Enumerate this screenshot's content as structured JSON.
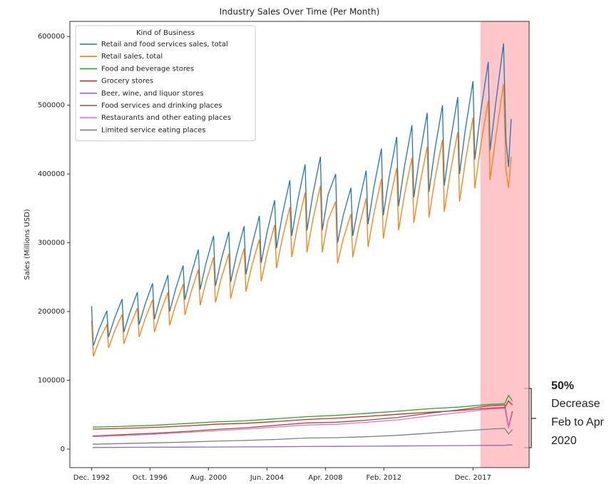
{
  "chart_data": {
    "type": "line",
    "title": "Industry Sales Over Time (Per Month)",
    "y_label": "Sales (Millions USD)",
    "legend_title": "Kind of Business",
    "legend": "upper left",
    "xlim": [
      1991.5,
      2021.6
    ],
    "ylim": [
      -27000,
      622000
    ],
    "xticks": [
      {
        "value": 1992.92,
        "label": "Dec. 1992"
      },
      {
        "value": 1996.75,
        "label": "Oct. 1996"
      },
      {
        "value": 2000.58,
        "label": "Aug. 2000"
      },
      {
        "value": 2004.42,
        "label": "Jun. 2004"
      },
      {
        "value": 2008.25,
        "label": "Apr. 2008"
      },
      {
        "value": 2012.08,
        "label": "Feb. 2012"
      },
      {
        "value": 2017.92,
        "label": "Dec. 2017"
      }
    ],
    "yticks": [
      0,
      100000,
      200000,
      300000,
      400000,
      500000,
      600000
    ],
    "highlight_x": [
      2018.4,
      2021.6
    ],
    "highlight_color": "#ffb3b8",
    "annotation": [
      "50%",
      "Decrease",
      "Feb to Apr",
      "2020"
    ],
    "series": [
      {
        "name": "Retail and food services sales, total",
        "color": "#1f77b4",
        "x": [
          1992.92,
          1993.04,
          1993.42,
          1993.92,
          1994.04,
          1994.42,
          1994.92,
          1995.04,
          1995.42,
          1995.92,
          1996.04,
          1996.42,
          1996.92,
          1997.04,
          1997.42,
          1997.92,
          1998.04,
          1998.42,
          1998.92,
          1999.04,
          1999.42,
          1999.92,
          2000.04,
          2000.42,
          2000.92,
          2001.04,
          2001.42,
          2001.92,
          2002.04,
          2002.42,
          2002.92,
          2003.04,
          2003.42,
          2003.92,
          2004.04,
          2004.42,
          2004.92,
          2005.04,
          2005.42,
          2005.92,
          2006.04,
          2006.42,
          2006.92,
          2007.04,
          2007.42,
          2007.92,
          2008.04,
          2008.42,
          2008.92,
          2009.04,
          2009.42,
          2009.92,
          2010.04,
          2010.42,
          2010.92,
          2011.04,
          2011.42,
          2011.92,
          2012.04,
          2012.42,
          2012.92,
          2013.04,
          2013.42,
          2013.92,
          2014.04,
          2014.42,
          2014.92,
          2015.04,
          2015.42,
          2015.92,
          2016.04,
          2016.42,
          2016.92,
          2017.04,
          2017.42,
          2017.92,
          2018.04,
          2018.42,
          2018.92,
          2019.04,
          2019.42,
          2019.92,
          2020.08,
          2020.25,
          2020.42
        ],
        "values": [
          208000,
          150000,
          175000,
          201000,
          163000,
          190000,
          218000,
          170000,
          198000,
          228000,
          181000,
          210000,
          241000,
          189000,
          220000,
          253000,
          200000,
          232000,
          267000,
          217000,
          252000,
          290000,
          232000,
          270000,
          310000,
          237000,
          275000,
          316000,
          243000,
          282000,
          324000,
          254000,
          295000,
          339000,
          271000,
          315000,
          362000,
          292000,
          340000,
          391000,
          310000,
          360000,
          414000,
          318000,
          370000,
          425000,
          318000,
          370000,
          400000,
          300000,
          340000,
          380000,
          310000,
          355000,
          405000,
          327000,
          380000,
          437000,
          340000,
          395000,
          454000,
          353000,
          410000,
          471000,
          366000,
          425000,
          489000,
          374000,
          435000,
          500000,
          383000,
          445000,
          512000,
          400000,
          465000,
          535000,
          421000,
          490000,
          563000,
          434000,
          505000,
          590000,
          450000,
          410000,
          480000
        ]
      },
      {
        "name": "Retail sales, total",
        "color": "#ff7f0e",
        "x": [
          1992.92,
          1993.04,
          1993.42,
          1993.92,
          1994.04,
          1994.42,
          1994.92,
          1995.04,
          1995.42,
          1995.92,
          1996.04,
          1996.42,
          1996.92,
          1997.04,
          1997.42,
          1997.92,
          1998.04,
          1998.42,
          1998.92,
          1999.04,
          1999.42,
          1999.92,
          2000.04,
          2000.42,
          2000.92,
          2001.04,
          2001.42,
          2001.92,
          2002.04,
          2002.42,
          2002.92,
          2003.04,
          2003.42,
          2003.92,
          2004.04,
          2004.42,
          2004.92,
          2005.04,
          2005.42,
          2005.92,
          2006.04,
          2006.42,
          2006.92,
          2007.04,
          2007.42,
          2007.92,
          2008.04,
          2008.42,
          2008.92,
          2009.04,
          2009.42,
          2009.92,
          2010.04,
          2010.42,
          2010.92,
          2011.04,
          2011.42,
          2011.92,
          2012.04,
          2012.42,
          2012.92,
          2013.04,
          2013.42,
          2013.92,
          2014.04,
          2014.42,
          2014.92,
          2015.04,
          2015.42,
          2015.92,
          2016.04,
          2016.42,
          2016.92,
          2017.04,
          2017.42,
          2017.92,
          2018.04,
          2018.42,
          2018.92,
          2019.04,
          2019.42,
          2019.92,
          2020.08,
          2020.25,
          2020.42
        ],
        "values": [
          187000,
          135000,
          158000,
          181000,
          147000,
          171000,
          196000,
          153000,
          178000,
          205000,
          163000,
          189000,
          217000,
          170000,
          198000,
          228000,
          180000,
          209000,
          240000,
          195000,
          227000,
          261000,
          209000,
          243000,
          279000,
          213000,
          248000,
          284000,
          219000,
          254000,
          292000,
          229000,
          266000,
          305000,
          244000,
          284000,
          326000,
          263000,
          306000,
          352000,
          279000,
          324000,
          373000,
          286000,
          333000,
          383000,
          286000,
          333000,
          360000,
          270000,
          306000,
          342000,
          279000,
          320000,
          365000,
          294000,
          342000,
          393000,
          306000,
          356000,
          409000,
          318000,
          369000,
          424000,
          329000,
          383000,
          440000,
          337000,
          392000,
          450000,
          345000,
          401000,
          461000,
          360000,
          419000,
          482000,
          379000,
          441000,
          507000,
          391000,
          455000,
          531000,
          405000,
          380000,
          425000
        ]
      },
      {
        "name": "Food and beverage stores",
        "color": "#2ca02c",
        "x": [
          1993,
          1995,
          1997,
          1999,
          2001,
          2003,
          2005,
          2007,
          2009,
          2011,
          2013,
          2015,
          2017,
          2019,
          2020.0,
          2020.25,
          2020.5
        ],
        "values": [
          32000,
          33000,
          34500,
          37000,
          39500,
          41000,
          44000,
          47000,
          49000,
          52000,
          55000,
          58500,
          61000,
          65000,
          66000,
          78000,
          70000
        ]
      },
      {
        "name": "Grocery stores",
        "color": "#d62728",
        "x": [
          1993,
          1995,
          1997,
          1999,
          2001,
          2003,
          2005,
          2007,
          2009,
          2011,
          2013,
          2015,
          2017,
          2019,
          2020.0,
          2020.25,
          2020.5
        ],
        "values": [
          29000,
          30000,
          31500,
          33500,
          36000,
          37500,
          40000,
          43000,
          45000,
          47500,
          50500,
          53500,
          56000,
          59500,
          60500,
          70000,
          64000
        ]
      },
      {
        "name": "Beer, wine, and liquor stores",
        "color": "#9467bd",
        "x": [
          1993,
          1995,
          1997,
          1999,
          2001,
          2003,
          2005,
          2007,
          2009,
          2011,
          2013,
          2015,
          2017,
          2019,
          2020.0,
          2020.25,
          2020.5
        ],
        "values": [
          2200,
          2400,
          2600,
          2800,
          3000,
          3200,
          3400,
          3700,
          3900,
          4100,
          4400,
          4700,
          5000,
          5300,
          5300,
          6000,
          5800
        ]
      },
      {
        "name": "Food services and drinking places",
        "color": "#8c564b",
        "x": [
          1993,
          1995,
          1997,
          1999,
          2001,
          2003,
          2005,
          2007,
          2009,
          2011,
          2013,
          2015,
          2017,
          2019,
          2020.0,
          2020.25,
          2020.5
        ],
        "values": [
          19000,
          21000,
          23000,
          25500,
          28500,
          31000,
          34500,
          38000,
          39000,
          42000,
          46000,
          52000,
          57000,
          63000,
          64000,
          32000,
          55000
        ]
      },
      {
        "name": "Restaurants and other eating places",
        "color": "#e377c2",
        "x": [
          1993,
          1995,
          1997,
          1999,
          2001,
          2003,
          2005,
          2007,
          2009,
          2011,
          2013,
          2015,
          2017,
          2019,
          2020.0,
          2020.25,
          2020.5
        ],
        "values": [
          18000,
          19500,
          21500,
          24000,
          26500,
          29000,
          32000,
          35000,
          36000,
          39000,
          42500,
          48000,
          53000,
          58000,
          59000,
          30000,
          52000
        ]
      },
      {
        "name": "Limited service eating places",
        "color": "#7f7f7f",
        "x": [
          1993,
          1995,
          1997,
          1999,
          2001,
          2003,
          2005,
          2007,
          2009,
          2011,
          2013,
          2015,
          2017,
          2019,
          2020.0,
          2020.25,
          2020.5
        ],
        "values": [
          7000,
          8000,
          9000,
          10000,
          11500,
          12500,
          14000,
          16000,
          16500,
          18000,
          20000,
          23000,
          26000,
          29000,
          30000,
          22000,
          28000
        ]
      }
    ]
  }
}
